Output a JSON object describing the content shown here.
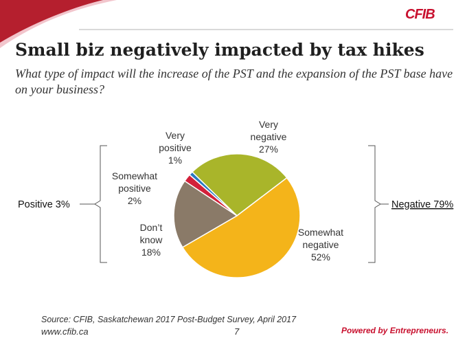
{
  "header": {
    "logo_text": "CFIB",
    "title": "Small biz negatively impacted by tax hikes",
    "subtitle": "What type of impact will the increase of the PST and the expansion of the PST base have on your business?"
  },
  "chart_data": {
    "type": "pie",
    "slices": [
      {
        "label_lines": [
          "Very",
          "negative",
          "27%"
        ],
        "value": 27,
        "color": "#a9b52a"
      },
      {
        "label_lines": [
          "Somewhat",
          "negative",
          "52%"
        ],
        "value": 52,
        "color": "#f4b41a"
      },
      {
        "label_lines": [
          "Don’t",
          "know",
          "18%"
        ],
        "value": 18,
        "color": "#8a7a68"
      },
      {
        "label_lines": [
          "Somewhat",
          "positive",
          "2%"
        ],
        "value": 2,
        "color": "#d2203a"
      },
      {
        "label_lines": [
          "Very",
          "positive",
          "1%"
        ],
        "value": 1,
        "color": "#2878c0"
      }
    ],
    "groups": {
      "positive": "Positive 3%",
      "negative": "Negative 79%"
    }
  },
  "footer": {
    "source": "Source: CFIB, Saskatchewan 2017 Post-Budget Survey, April 2017",
    "url": "www.cfib.ca",
    "page_number": "7",
    "tagline": "Powered by Entrepreneurs."
  },
  "colors": {
    "brand_red": "#c8102e",
    "corner_red": "#b51f2e",
    "corner_pink": "#f2c5cc"
  }
}
